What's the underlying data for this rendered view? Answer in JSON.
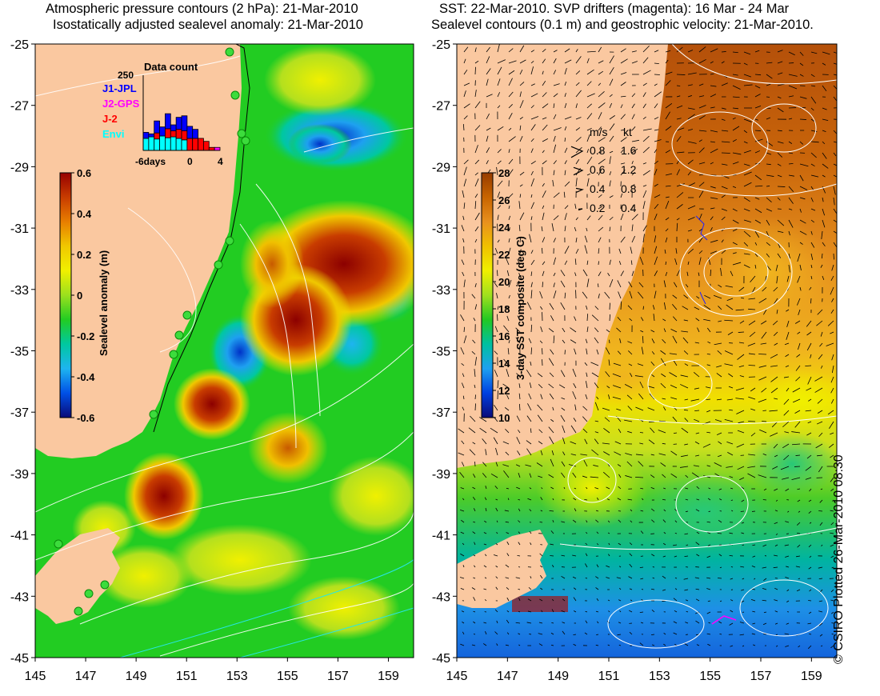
{
  "left_panel": {
    "title_line1": "Atmospheric pressure contours (2 hPa): 21-Mar-2010",
    "title_line2": "Isostatically adjusted sealevel anomaly: 21-Mar-2010",
    "colorbar": {
      "label": "Sealevel anomaly (m)",
      "ticks": [
        "0.6",
        "0.4",
        "0.2",
        "0",
        "-0.2",
        "-0.4",
        "-0.6"
      ],
      "colors": [
        "#0a0a78",
        "#0050e6",
        "#1eb4f0",
        "#00c8a0",
        "#22cc22",
        "#9be01e",
        "#f0f000",
        "#f0c800",
        "#e87e00",
        "#c83c00",
        "#960000"
      ]
    },
    "inset": {
      "title": "Data count",
      "ymax_label": "250",
      "x_ticks": [
        "-6days",
        "0",
        "4"
      ],
      "legend": [
        {
          "label": "J1-JPL",
          "color": "#0000ff"
        },
        {
          "label": "J2-GPS",
          "color": "#ff00ff"
        },
        {
          "label": "J-2",
          "color": "#ff0000"
        },
        {
          "label": "Envi",
          "color": "#00ffff"
        }
      ],
      "chart_data": {
        "type": "bar",
        "ylim": [
          0,
          250
        ],
        "series": [
          {
            "name": "Envi",
            "values": [
              40,
              45,
              38,
              48,
              42,
              45,
              40,
              35,
              0,
              0,
              0,
              0,
              0,
              0
            ]
          },
          {
            "name": "J-2",
            "values": [
              0,
              0,
              20,
              0,
              30,
              20,
              30,
              30,
              40,
              40,
              40,
              30,
              10,
              0
            ]
          },
          {
            "name": "J1-JPL",
            "values": [
              20,
              10,
              40,
              30,
              50,
              20,
              40,
              50,
              40,
              30,
              0,
              0,
              0,
              0
            ]
          },
          {
            "name": "J2-GPS",
            "values": [
              0,
              0,
              0,
              0,
              0,
              0,
              0,
              0,
              0,
              0,
              0,
              0,
              0,
              10
            ]
          }
        ]
      }
    }
  },
  "right_panel": {
    "title_line1": "SST: 22-Mar-2010. SVP drifters (magenta): 16 Mar - 24 Mar",
    "title_line2": "Sealevel contours (0.1 m) and geostrophic velocity: 21-Mar-2010.",
    "colorbar": {
      "label": "3-day SST composite (deg C)",
      "ticks": [
        "28",
        "26",
        "24",
        "22",
        "20",
        "18",
        "16",
        "14",
        "12",
        "10"
      ],
      "colors": [
        "#0a0a78",
        "#0040e0",
        "#1ea0f0",
        "#00c0a0",
        "#22c822",
        "#a0e01e",
        "#f0f000",
        "#f0c000",
        "#e8901e",
        "#c86400",
        "#963c00"
      ]
    },
    "velocity_legend": {
      "header_ms": "m/s",
      "header_kt": "kt",
      "rows": [
        {
          "ms": "0.8",
          "kt": "1.6"
        },
        {
          "ms": "0.6",
          "kt": "1.2"
        },
        {
          "ms": "0.4",
          "kt": "0.8"
        },
        {
          "ms": "0.2",
          "kt": "0.4"
        }
      ]
    }
  },
  "axes": {
    "lat_labels": [
      "-25",
      "-27",
      "-29",
      "-31",
      "-33",
      "-35",
      "-37",
      "-39",
      "-41",
      "-43",
      "-45"
    ],
    "lon_labels": [
      "145",
      "147",
      "149",
      "151",
      "153",
      "155",
      "157",
      "159"
    ]
  },
  "credit": "© CSIRO Plotted 26-Mar-2010 08:30",
  "colors": {
    "land": "#fac8a0",
    "background": "#ffffff"
  }
}
